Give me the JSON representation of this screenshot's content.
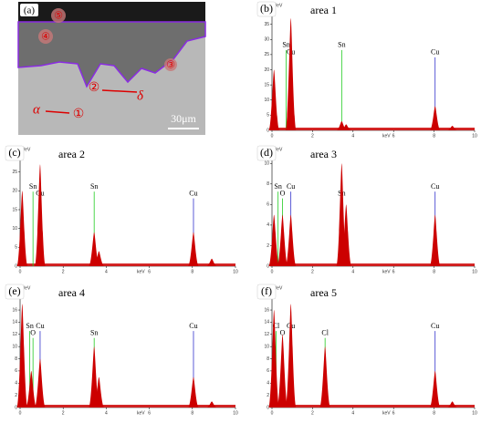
{
  "image": {
    "label": "(a)",
    "markers": [
      "①",
      "②",
      "③",
      "④",
      "⑤"
    ],
    "alpha": "α",
    "delta": "δ",
    "scale": "30μm"
  },
  "chart_data": [
    {
      "type": "spectrum",
      "panel": "(b)",
      "title": "area 1",
      "ylabel": "cps/eV",
      "xlabel": "keV",
      "xlim": [
        0,
        10
      ],
      "ylim": [
        0,
        40
      ],
      "xticks": [
        0,
        2,
        4,
        6,
        8,
        10
      ],
      "yticks": [
        0,
        5,
        10,
        15,
        20,
        25,
        30,
        35
      ],
      "color": "#cc0000",
      "x": [
        0.1,
        0.93,
        3.44,
        3.66,
        8.05,
        8.9
      ],
      "values": [
        20,
        37,
        3,
        2,
        8,
        1.5
      ],
      "annotations": [
        {
          "text": "Sn",
          "x": 0.7,
          "color": "#22cc22"
        },
        {
          "text": "Cu",
          "x": 0.93,
          "color": "#3333cc"
        },
        {
          "text": "Sn",
          "x": 3.44,
          "color": "#22cc22"
        },
        {
          "text": "Cu",
          "x": 8.05,
          "color": "#3333cc"
        }
      ]
    },
    {
      "type": "spectrum",
      "panel": "(c)",
      "title": "area 2",
      "ylabel": "cps/eV",
      "xlabel": "keV",
      "xlim": [
        0,
        10
      ],
      "ylim": [
        0,
        30
      ],
      "xticks": [
        0,
        2,
        4,
        6,
        8,
        10
      ],
      "yticks": [
        0,
        5,
        10,
        15,
        20,
        25
      ],
      "color": "#cc0000",
      "x": [
        0.1,
        0.93,
        3.44,
        3.66,
        8.05,
        8.9
      ],
      "values": [
        20,
        27,
        9,
        4,
        9,
        2
      ],
      "annotations": [
        {
          "text": "Sn",
          "x": 0.6,
          "color": "#22cc22"
        },
        {
          "text": "Cu",
          "x": 0.93,
          "color": "#3333cc"
        },
        {
          "text": "Sn",
          "x": 3.44,
          "color": "#22cc22"
        },
        {
          "text": "Cu",
          "x": 8.05,
          "color": "#3333cc"
        }
      ]
    },
    {
      "type": "spectrum",
      "panel": "(d)",
      "title": "area 3",
      "ylabel": "cps/eV",
      "xlabel": "keV",
      "xlim": [
        0,
        10
      ],
      "ylim": [
        0,
        11
      ],
      "xticks": [
        0,
        2,
        4,
        6,
        8,
        10
      ],
      "yticks": [
        0,
        2,
        4,
        6,
        8,
        10
      ],
      "color": "#cc0000",
      "x": [
        0.1,
        0.52,
        0.93,
        3.44,
        3.66,
        8.05
      ],
      "values": [
        5,
        5,
        5,
        10,
        6,
        5
      ],
      "annotations": [
        {
          "text": "Sn",
          "x": 0.3,
          "color": "#22cc22"
        },
        {
          "text": "O",
          "x": 0.52,
          "color": "#22cc22"
        },
        {
          "text": "Cu",
          "x": 0.93,
          "color": "#3333cc"
        },
        {
          "text": "Sn",
          "x": 3.44,
          "color": "#22cc22"
        },
        {
          "text": "Cu",
          "x": 8.05,
          "color": "#3333cc"
        }
      ]
    },
    {
      "type": "spectrum",
      "panel": "(e)",
      "title": "area 4",
      "ylabel": "cps/eV",
      "xlabel": "keV",
      "xlim": [
        0,
        10
      ],
      "ylim": [
        0,
        19
      ],
      "xticks": [
        0,
        2,
        4,
        6,
        8,
        10
      ],
      "yticks": [
        0,
        2,
        4,
        6,
        8,
        10,
        12,
        14,
        16,
        18
      ],
      "color": "#cc0000",
      "x": [
        0.1,
        0.52,
        0.93,
        3.44,
        3.66,
        8.05,
        8.9
      ],
      "values": [
        17,
        6,
        8,
        10,
        5,
        5,
        1
      ],
      "annotations": [
        {
          "text": "Sn",
          "x": 0.45,
          "color": "#22cc22"
        },
        {
          "text": "O",
          "x": 0.6,
          "color": "#22cc22"
        },
        {
          "text": "Cu",
          "x": 0.93,
          "color": "#3333cc"
        },
        {
          "text": "Sn",
          "x": 3.44,
          "color": "#22cc22"
        },
        {
          "text": "Cu",
          "x": 8.05,
          "color": "#3333cc"
        }
      ]
    },
    {
      "type": "spectrum",
      "panel": "(f)",
      "title": "area 5",
      "ylabel": "cps/eV",
      "xlabel": "keV",
      "xlim": [
        0,
        10
      ],
      "ylim": [
        0,
        19
      ],
      "xticks": [
        0,
        2,
        4,
        6,
        8,
        10
      ],
      "yticks": [
        0,
        2,
        4,
        6,
        8,
        10,
        12,
        14,
        16,
        18
      ],
      "color": "#cc0000",
      "x": [
        0.1,
        0.52,
        0.93,
        2.62,
        8.05,
        8.9
      ],
      "values": [
        16,
        12,
        17,
        10,
        6,
        1
      ],
      "annotations": [
        {
          "text": "Cl",
          "x": 0.2,
          "color": "#22cc22"
        },
        {
          "text": "O",
          "x": 0.52,
          "color": "#22cc22"
        },
        {
          "text": "Cu",
          "x": 0.93,
          "color": "#3333cc"
        },
        {
          "text": "Cl",
          "x": 2.62,
          "color": "#22cc22"
        },
        {
          "text": "Cu",
          "x": 8.05,
          "color": "#3333cc"
        }
      ]
    }
  ]
}
